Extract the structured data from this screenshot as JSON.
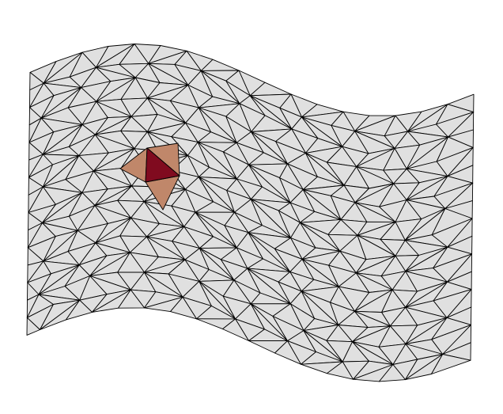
{
  "mesh": {
    "type": "triangulated surface mesh",
    "rows": 15,
    "cols": 17,
    "colors": {
      "fill": "#e0e0e0",
      "edge": "#000000",
      "selected": "#800b1f",
      "neighbor": "#c0876a"
    },
    "highlight": {
      "selected_triangle": "center element",
      "neighbor_triangles": 3
    }
  }
}
